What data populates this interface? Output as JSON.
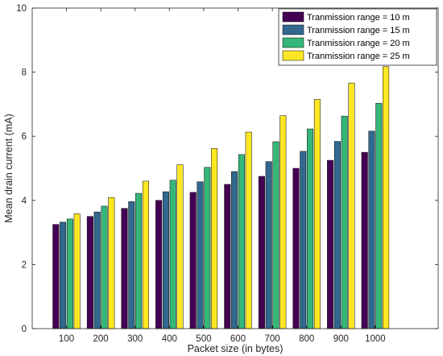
{
  "chart_data": {
    "type": "bar",
    "xlabel": "Packet size (in bytes)",
    "ylabel": "Mean drain current (mA)",
    "categories": [
      "100",
      "200",
      "300",
      "400",
      "500",
      "600",
      "700",
      "800",
      "900",
      "1000"
    ],
    "ylim": [
      0,
      10
    ],
    "yticks": [
      "0",
      "2",
      "4",
      "6",
      "8",
      "10"
    ],
    "grid": false,
    "legend_position": "top-right",
    "series": [
      {
        "name": "Tranmission range = 10 m",
        "color": "#440154",
        "values": [
          3.25,
          3.5,
          3.75,
          4.0,
          4.25,
          4.5,
          4.75,
          5.0,
          5.25,
          5.5
        ]
      },
      {
        "name": "Tranmission range = 15 m",
        "color": "#31688E",
        "values": [
          3.32,
          3.64,
          3.96,
          4.27,
          4.58,
          4.9,
          5.21,
          5.53,
          5.84,
          6.16
        ]
      },
      {
        "name": "Tranmission range = 20 m",
        "color": "#35B779",
        "values": [
          3.42,
          3.82,
          4.22,
          4.63,
          5.03,
          5.43,
          5.83,
          6.23,
          6.63,
          7.03
        ]
      },
      {
        "name": "Tranmission range = 25 m",
        "color": "#FDE725",
        "values": [
          3.58,
          4.09,
          4.6,
          5.11,
          5.62,
          6.13,
          6.64,
          7.15,
          7.66,
          8.17
        ]
      }
    ]
  }
}
